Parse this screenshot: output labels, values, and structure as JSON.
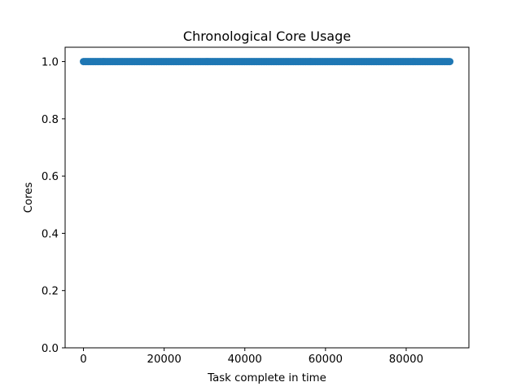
{
  "chart_data": {
    "type": "scatter",
    "title": "Chronological Core Usage",
    "xlabel": "Task complete in time",
    "ylabel": "Cores",
    "xlim": [
      -4550,
      95550
    ],
    "ylim": [
      0.0,
      1.05
    ],
    "xticks": [
      0,
      20000,
      40000,
      60000,
      80000
    ],
    "yticks": [
      0.0,
      0.2,
      0.4,
      0.6,
      0.8,
      1.0
    ],
    "xtick_labels": [
      "0",
      "20000",
      "40000",
      "60000",
      "80000"
    ],
    "ytick_labels": [
      "0.0",
      "0.2",
      "0.4",
      "0.6",
      "0.8",
      "1.0"
    ],
    "grid": false,
    "series": [
      {
        "color": "#1f77b4",
        "x_range": [
          0,
          91000
        ],
        "y": 1.0
      }
    ]
  }
}
